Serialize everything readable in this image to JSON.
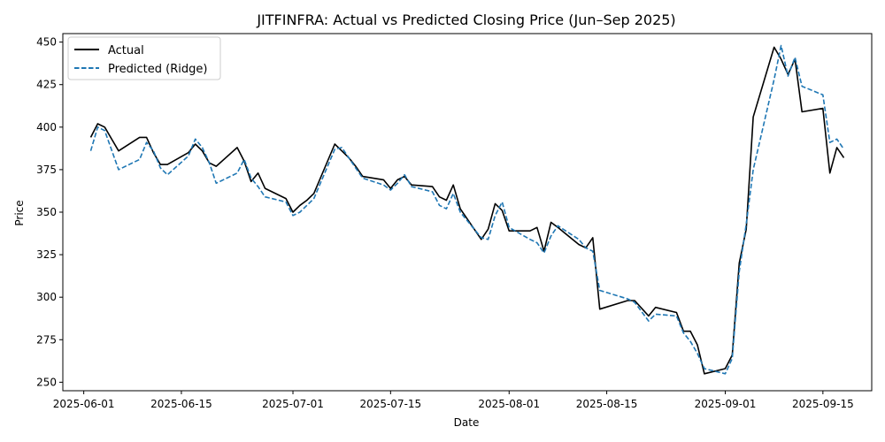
{
  "chart_data": {
    "type": "line",
    "title": "JITFINFRA: Actual vs Predicted Closing Price (Jun–Sep 2025)",
    "xlabel": "Date",
    "ylabel": "Price",
    "xlim": [
      "2025-05-29",
      "2025-09-22"
    ],
    "ylim": [
      245,
      455
    ],
    "x_ticks": [
      "2025-06-01",
      "2025-06-15",
      "2025-07-01",
      "2025-07-15",
      "2025-08-01",
      "2025-08-15",
      "2025-09-01",
      "2025-09-15"
    ],
    "y_ticks": [
      250,
      275,
      300,
      325,
      350,
      375,
      400,
      425,
      450
    ],
    "grid": false,
    "legend": {
      "placement": "top-left"
    },
    "series": [
      {
        "name": "Actual",
        "color": "#000000",
        "style": "solid",
        "points": [
          [
            "2025-06-02",
            394
          ],
          [
            "2025-06-03",
            402
          ],
          [
            "2025-06-04",
            400
          ],
          [
            "2025-06-06",
            386
          ],
          [
            "2025-06-09",
            394
          ],
          [
            "2025-06-10",
            394
          ],
          [
            "2025-06-11",
            385
          ],
          [
            "2025-06-12",
            378
          ],
          [
            "2025-06-13",
            378
          ],
          [
            "2025-06-16",
            385
          ],
          [
            "2025-06-17",
            390
          ],
          [
            "2025-06-18",
            386
          ],
          [
            "2025-06-19",
            379
          ],
          [
            "2025-06-20",
            377
          ],
          [
            "2025-06-23",
            388
          ],
          [
            "2025-06-24",
            380
          ],
          [
            "2025-06-25",
            368
          ],
          [
            "2025-06-26",
            373
          ],
          [
            "2025-06-27",
            364
          ],
          [
            "2025-06-30",
            358
          ],
          [
            "2025-07-01",
            350
          ],
          [
            "2025-07-02",
            354
          ],
          [
            "2025-07-03",
            357
          ],
          [
            "2025-07-04",
            361
          ],
          [
            "2025-07-07",
            390
          ],
          [
            "2025-07-08",
            386
          ],
          [
            "2025-07-09",
            382
          ],
          [
            "2025-07-10",
            377
          ],
          [
            "2025-07-11",
            371
          ],
          [
            "2025-07-14",
            369
          ],
          [
            "2025-07-15",
            364
          ],
          [
            "2025-07-16",
            369
          ],
          [
            "2025-07-17",
            371
          ],
          [
            "2025-07-18",
            366
          ],
          [
            "2025-07-21",
            365
          ],
          [
            "2025-07-22",
            359
          ],
          [
            "2025-07-23",
            357
          ],
          [
            "2025-07-24",
            366
          ],
          [
            "2025-07-25",
            352
          ],
          [
            "2025-07-28",
            334
          ],
          [
            "2025-07-29",
            340
          ],
          [
            "2025-07-30",
            355
          ],
          [
            "2025-07-31",
            351
          ],
          [
            "2025-08-01",
            339
          ],
          [
            "2025-08-04",
            339
          ],
          [
            "2025-08-05",
            341
          ],
          [
            "2025-08-06",
            327
          ],
          [
            "2025-08-07",
            344
          ],
          [
            "2025-08-08",
            341
          ],
          [
            "2025-08-11",
            331
          ],
          [
            "2025-08-12",
            329
          ],
          [
            "2025-08-13",
            335
          ],
          [
            "2025-08-14",
            293
          ],
          [
            "2025-08-18",
            298
          ],
          [
            "2025-08-19",
            298
          ],
          [
            "2025-08-21",
            289
          ],
          [
            "2025-08-22",
            294
          ],
          [
            "2025-08-25",
            291
          ],
          [
            "2025-08-26",
            280
          ],
          [
            "2025-08-27",
            280
          ],
          [
            "2025-08-28",
            272
          ],
          [
            "2025-08-29",
            255
          ],
          [
            "2025-09-01",
            258
          ],
          [
            "2025-09-02",
            266
          ],
          [
            "2025-09-03",
            320
          ],
          [
            "2025-09-04",
            340
          ],
          [
            "2025-09-05",
            406
          ],
          [
            "2025-09-08",
            447
          ],
          [
            "2025-09-09",
            440
          ],
          [
            "2025-09-10",
            431
          ],
          [
            "2025-09-11",
            440
          ],
          [
            "2025-09-12",
            409
          ],
          [
            "2025-09-15",
            411
          ],
          [
            "2025-09-16",
            373
          ],
          [
            "2025-09-17",
            388
          ],
          [
            "2025-09-18",
            382
          ]
        ]
      },
      {
        "name": "Predicted (Ridge)",
        "color": "#1f77b4",
        "style": "dashed",
        "points": [
          [
            "2025-06-02",
            386
          ],
          [
            "2025-06-03",
            400
          ],
          [
            "2025-06-04",
            398
          ],
          [
            "2025-06-06",
            375
          ],
          [
            "2025-06-09",
            381
          ],
          [
            "2025-06-10",
            391
          ],
          [
            "2025-06-11",
            386
          ],
          [
            "2025-06-12",
            376
          ],
          [
            "2025-06-13",
            372
          ],
          [
            "2025-06-16",
            383
          ],
          [
            "2025-06-17",
            393
          ],
          [
            "2025-06-18",
            388
          ],
          [
            "2025-06-19",
            379
          ],
          [
            "2025-06-20",
            367
          ],
          [
            "2025-06-23",
            373
          ],
          [
            "2025-06-24",
            381
          ],
          [
            "2025-06-25",
            370
          ],
          [
            "2025-06-26",
            365
          ],
          [
            "2025-06-27",
            359
          ],
          [
            "2025-06-30",
            356
          ],
          [
            "2025-07-01",
            348
          ],
          [
            "2025-07-02",
            350
          ],
          [
            "2025-07-03",
            354
          ],
          [
            "2025-07-04",
            358
          ],
          [
            "2025-07-07",
            387
          ],
          [
            "2025-07-08",
            388
          ],
          [
            "2025-07-09",
            382
          ],
          [
            "2025-07-10",
            376
          ],
          [
            "2025-07-11",
            370
          ],
          [
            "2025-07-14",
            366
          ],
          [
            "2025-07-15",
            363
          ],
          [
            "2025-07-16",
            367
          ],
          [
            "2025-07-17",
            372
          ],
          [
            "2025-07-18",
            365
          ],
          [
            "2025-07-21",
            362
          ],
          [
            "2025-07-22",
            354
          ],
          [
            "2025-07-23",
            352
          ],
          [
            "2025-07-24",
            361
          ],
          [
            "2025-07-25",
            350
          ],
          [
            "2025-07-28",
            335
          ],
          [
            "2025-07-29",
            334
          ],
          [
            "2025-07-30",
            348
          ],
          [
            "2025-07-31",
            356
          ],
          [
            "2025-08-01",
            341
          ],
          [
            "2025-08-04",
            334
          ],
          [
            "2025-08-05",
            332
          ],
          [
            "2025-08-06",
            326
          ],
          [
            "2025-08-07",
            336
          ],
          [
            "2025-08-08",
            342
          ],
          [
            "2025-08-11",
            334
          ],
          [
            "2025-08-12",
            329
          ],
          [
            "2025-08-13",
            327
          ],
          [
            "2025-08-14",
            304
          ],
          [
            "2025-08-18",
            299
          ],
          [
            "2025-08-19",
            297
          ],
          [
            "2025-08-21",
            286
          ],
          [
            "2025-08-22",
            290
          ],
          [
            "2025-08-25",
            289
          ],
          [
            "2025-08-26",
            279
          ],
          [
            "2025-08-27",
            274
          ],
          [
            "2025-08-28",
            267
          ],
          [
            "2025-08-29",
            258
          ],
          [
            "2025-09-01",
            255
          ],
          [
            "2025-09-02",
            264
          ],
          [
            "2025-09-03",
            315
          ],
          [
            "2025-09-04",
            343
          ],
          [
            "2025-09-05",
            375
          ],
          [
            "2025-09-08",
            428
          ],
          [
            "2025-09-09",
            448
          ],
          [
            "2025-09-10",
            430
          ],
          [
            "2025-09-11",
            441
          ],
          [
            "2025-09-12",
            424
          ],
          [
            "2025-09-15",
            419
          ],
          [
            "2025-09-16",
            391
          ],
          [
            "2025-09-17",
            393
          ],
          [
            "2025-09-18",
            387
          ]
        ]
      }
    ]
  }
}
